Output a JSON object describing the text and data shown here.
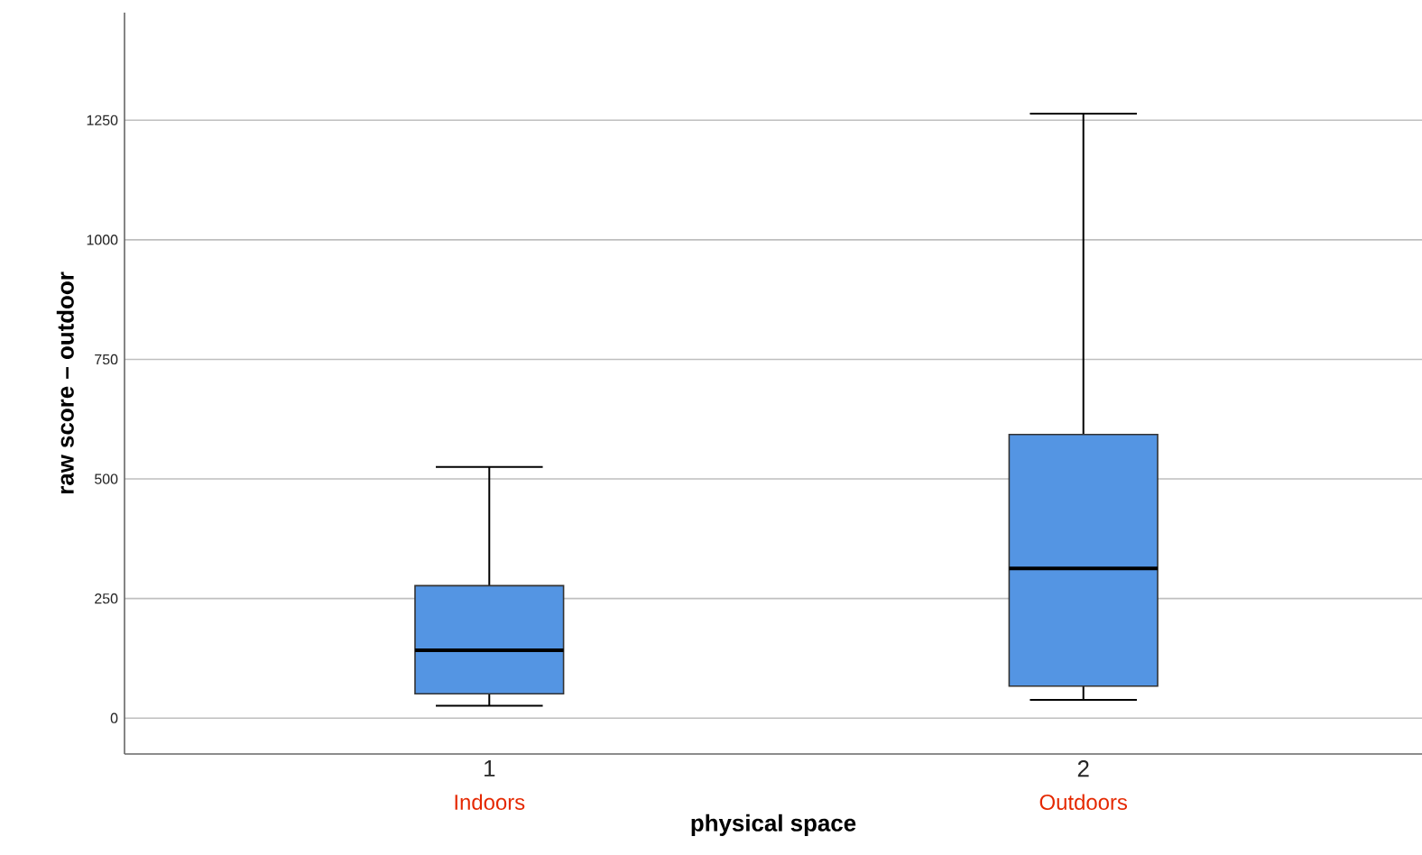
{
  "chart_data": {
    "type": "box",
    "xlabel": "physical space",
    "ylabel": "raw score – outdoor",
    "categories": [
      "1",
      "2"
    ],
    "series": [
      {
        "color": "#5495e3",
        "boxes": [
          {
            "low": 26,
            "q1": 51,
            "median": 142,
            "q3": 277,
            "high": 525
          },
          {
            "low": 38,
            "q1": 67,
            "median": 313,
            "q3": 593,
            "high": 1264
          }
        ]
      }
    ],
    "ylim": [
      -75,
      1475
    ],
    "yticks": [
      0,
      250,
      500,
      750,
      1000,
      1250
    ],
    "grid": "y",
    "annotations": [
      "Indoors",
      "Outdoors"
    ]
  }
}
